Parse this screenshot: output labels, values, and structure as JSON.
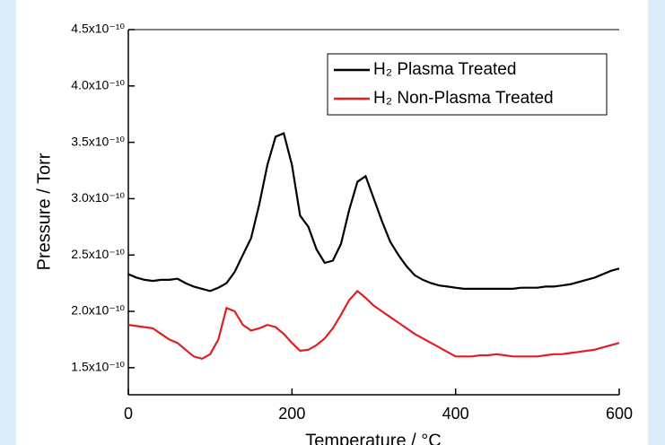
{
  "chart_data": {
    "type": "line",
    "y_label": "Pressure / Torr",
    "x_label": "Temperature / °C",
    "x": [
      0,
      10,
      20,
      30,
      40,
      50,
      60,
      70,
      80,
      90,
      100,
      110,
      120,
      130,
      140,
      150,
      160,
      170,
      180,
      190,
      200,
      210,
      220,
      230,
      240,
      250,
      260,
      270,
      280,
      290,
      300,
      310,
      320,
      330,
      340,
      350,
      360,
      370,
      380,
      390,
      400,
      410,
      420,
      430,
      440,
      450,
      460,
      470,
      480,
      490,
      500,
      510,
      520,
      530,
      540,
      550,
      560,
      570,
      580,
      590,
      600
    ],
    "series": [
      {
        "name": "H₂ Plasma Treated",
        "color": "#000000",
        "values": [
          2.33e-10,
          2.3e-10,
          2.28e-10,
          2.27e-10,
          2.28e-10,
          2.28e-10,
          2.29e-10,
          2.25e-10,
          2.22e-10,
          2.2e-10,
          2.18e-10,
          2.21e-10,
          2.25e-10,
          2.35e-10,
          2.5e-10,
          2.65e-10,
          2.95e-10,
          3.3e-10,
          3.55e-10,
          3.58e-10,
          3.3e-10,
          2.85e-10,
          2.75e-10,
          2.55e-10,
          2.43e-10,
          2.45e-10,
          2.6e-10,
          2.9e-10,
          3.15e-10,
          3.2e-10,
          3e-10,
          2.8e-10,
          2.62e-10,
          2.5e-10,
          2.4e-10,
          2.32e-10,
          2.28e-10,
          2.25e-10,
          2.23e-10,
          2.22e-10,
          2.21e-10,
          2.2e-10,
          2.2e-10,
          2.2e-10,
          2.2e-10,
          2.2e-10,
          2.2e-10,
          2.2e-10,
          2.21e-10,
          2.21e-10,
          2.21e-10,
          2.22e-10,
          2.22e-10,
          2.23e-10,
          2.24e-10,
          2.26e-10,
          2.28e-10,
          2.3e-10,
          2.33e-10,
          2.36e-10,
          2.38e-10
        ]
      },
      {
        "name": "H₂ Non-Plasma Treated",
        "color": "#e02020",
        "values": [
          1.88e-10,
          1.87e-10,
          1.86e-10,
          1.85e-10,
          1.8e-10,
          1.75e-10,
          1.72e-10,
          1.66e-10,
          1.6e-10,
          1.58e-10,
          1.62e-10,
          1.75e-10,
          2.03e-10,
          2e-10,
          1.88e-10,
          1.83e-10,
          1.85e-10,
          1.88e-10,
          1.86e-10,
          1.8e-10,
          1.72e-10,
          1.65e-10,
          1.66e-10,
          1.7e-10,
          1.76e-10,
          1.85e-10,
          1.97e-10,
          2.1e-10,
          2.18e-10,
          2.12e-10,
          2.05e-10,
          2e-10,
          1.95e-10,
          1.9e-10,
          1.85e-10,
          1.8e-10,
          1.76e-10,
          1.72e-10,
          1.68e-10,
          1.64e-10,
          1.6e-10,
          1.6e-10,
          1.6e-10,
          1.61e-10,
          1.61e-10,
          1.62e-10,
          1.61e-10,
          1.6e-10,
          1.6e-10,
          1.6e-10,
          1.6e-10,
          1.61e-10,
          1.62e-10,
          1.62e-10,
          1.63e-10,
          1.64e-10,
          1.65e-10,
          1.66e-10,
          1.68e-10,
          1.7e-10,
          1.72e-10
        ]
      }
    ],
    "xlim": [
      0,
      600
    ],
    "xticks": [
      0,
      200,
      400,
      600
    ],
    "ylim": [
      1.26e-10,
      4.5e-10
    ],
    "yticks": [
      {
        "value": 1.5e-10,
        "label": "1.5x10⁻¹⁰"
      },
      {
        "value": 2e-10,
        "label": "2.0x10⁻¹⁰"
      },
      {
        "value": 2.5e-10,
        "label": "2.5x10⁻¹⁰"
      },
      {
        "value": 3e-10,
        "label": "3.0x10⁻¹⁰"
      },
      {
        "value": 3.5e-10,
        "label": "3.5x10⁻¹⁰"
      },
      {
        "value": 4e-10,
        "label": "4.0x10⁻¹⁰"
      },
      {
        "value": 4.5e-10,
        "label": "4.5x10⁻¹⁰"
      }
    ],
    "legend": "upper right"
  }
}
